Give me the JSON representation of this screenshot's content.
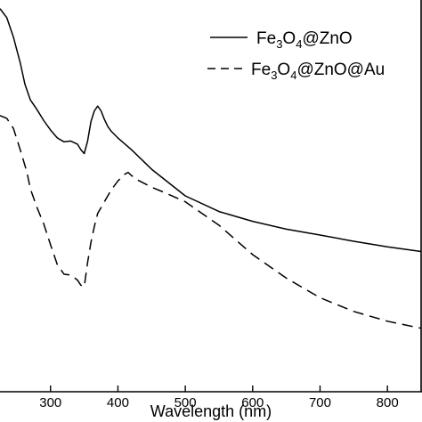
{
  "chart_data": {
    "type": "line",
    "xlabel": "Wavelength (nm)",
    "ylabel": "",
    "xlim": [
      225,
      850
    ],
    "ylim": [
      0,
      1
    ],
    "x_ticks": [
      300,
      400,
      500,
      600,
      700,
      800
    ],
    "x_tick_labels": [
      "300",
      "400",
      "500",
      "600",
      "700",
      "800"
    ],
    "grid": false,
    "legend_position": "top-right",
    "series": [
      {
        "name": "Fe3O4@ZnO",
        "line_style": "solid",
        "color": "#000000",
        "x": [
          225,
          235,
          245,
          255,
          262,
          270,
          280,
          290,
          300,
          310,
          320,
          330,
          340,
          345,
          350,
          355,
          360,
          365,
          370,
          375,
          380,
          385,
          390,
          400,
          420,
          450,
          500,
          550,
          600,
          650,
          700,
          750,
          800,
          850
        ],
        "y": [
          0.978,
          0.955,
          0.905,
          0.84,
          0.785,
          0.745,
          0.72,
          0.692,
          0.668,
          0.648,
          0.638,
          0.64,
          0.632,
          0.618,
          0.608,
          0.64,
          0.69,
          0.717,
          0.729,
          0.717,
          0.695,
          0.677,
          0.665,
          0.648,
          0.618,
          0.568,
          0.5,
          0.46,
          0.435,
          0.415,
          0.4,
          0.384,
          0.37,
          0.358
        ]
      },
      {
        "name": "Fe3O4@ZnO@Au",
        "line_style": "dashed",
        "color": "#000000",
        "x": [
          225,
          235,
          245,
          255,
          265,
          270,
          280,
          290,
          300,
          310,
          320,
          330,
          340,
          345,
          350,
          355,
          360,
          365,
          370,
          380,
          390,
          400,
          410,
          415,
          420,
          430,
          450,
          470,
          500,
          550,
          600,
          650,
          700,
          750,
          800,
          850
        ],
        "y": [
          0.705,
          0.698,
          0.672,
          0.618,
          0.56,
          0.518,
          0.47,
          0.428,
          0.375,
          0.325,
          0.3,
          0.298,
          0.285,
          0.272,
          0.268,
          0.33,
          0.382,
          0.422,
          0.455,
          0.485,
          0.515,
          0.538,
          0.555,
          0.56,
          0.552,
          0.54,
          0.522,
          0.508,
          0.485,
          0.425,
          0.35,
          0.29,
          0.24,
          0.205,
          0.18,
          0.162
        ]
      }
    ]
  },
  "legend": {
    "items": [
      {
        "prefix": "Fe",
        "sub1": "3",
        "mid": "O",
        "sub2": "4",
        "suffix": "@ZnO"
      },
      {
        "prefix": "Fe",
        "sub1": "3",
        "mid": "O",
        "sub2": "4",
        "suffix": "@ZnO@Au"
      }
    ]
  }
}
